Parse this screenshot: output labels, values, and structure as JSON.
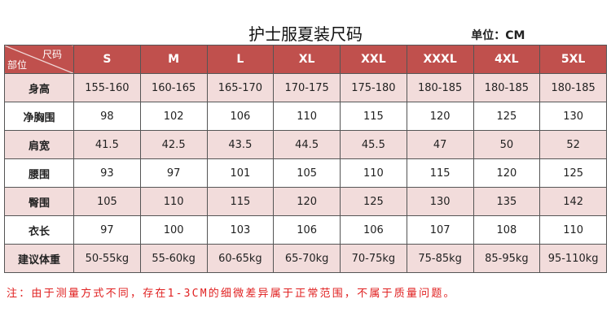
{
  "title": "护士服夏装尺码",
  "unit": "单位：CM",
  "table": {
    "corner_top": "尺码",
    "corner_bottom": "部位",
    "header": [
      "S",
      "M",
      "L",
      "XL",
      "XXL",
      "XXXL",
      "4XL",
      "5XL"
    ],
    "rows": [
      {
        "label": "身高",
        "cells": [
          "155-160",
          "160-165",
          "165-170",
          "170-175",
          "175-180",
          "180-185",
          "180-185",
          "180-185"
        ]
      },
      {
        "label": "净胸围",
        "cells": [
          "98",
          "102",
          "106",
          "110",
          "115",
          "120",
          "125",
          "130"
        ]
      },
      {
        "label": "肩宽",
        "cells": [
          "41.5",
          "42.5",
          "43.5",
          "44.5",
          "45.5",
          "47",
          "50",
          "52"
        ]
      },
      {
        "label": "腰围",
        "cells": [
          "93",
          "97",
          "101",
          "105",
          "110",
          "115",
          "120",
          "125"
        ]
      },
      {
        "label": "臀围",
        "cells": [
          "105",
          "110",
          "115",
          "120",
          "125",
          "130",
          "135",
          "142"
        ]
      },
      {
        "label": "衣长",
        "cells": [
          "97",
          "100",
          "103",
          "106",
          "106",
          "107",
          "108",
          "110"
        ]
      },
      {
        "label": "建议体重",
        "cells": [
          "50-55kg",
          "55-60kg",
          "60-65kg",
          "65-70kg",
          "70-75kg",
          "75-85kg",
          "85-95kg",
          "95-110kg"
        ]
      }
    ]
  },
  "note": "注：由于测量方式不同，存在1-3CM的细微差异属于正常范围，不属于质量问题。"
}
